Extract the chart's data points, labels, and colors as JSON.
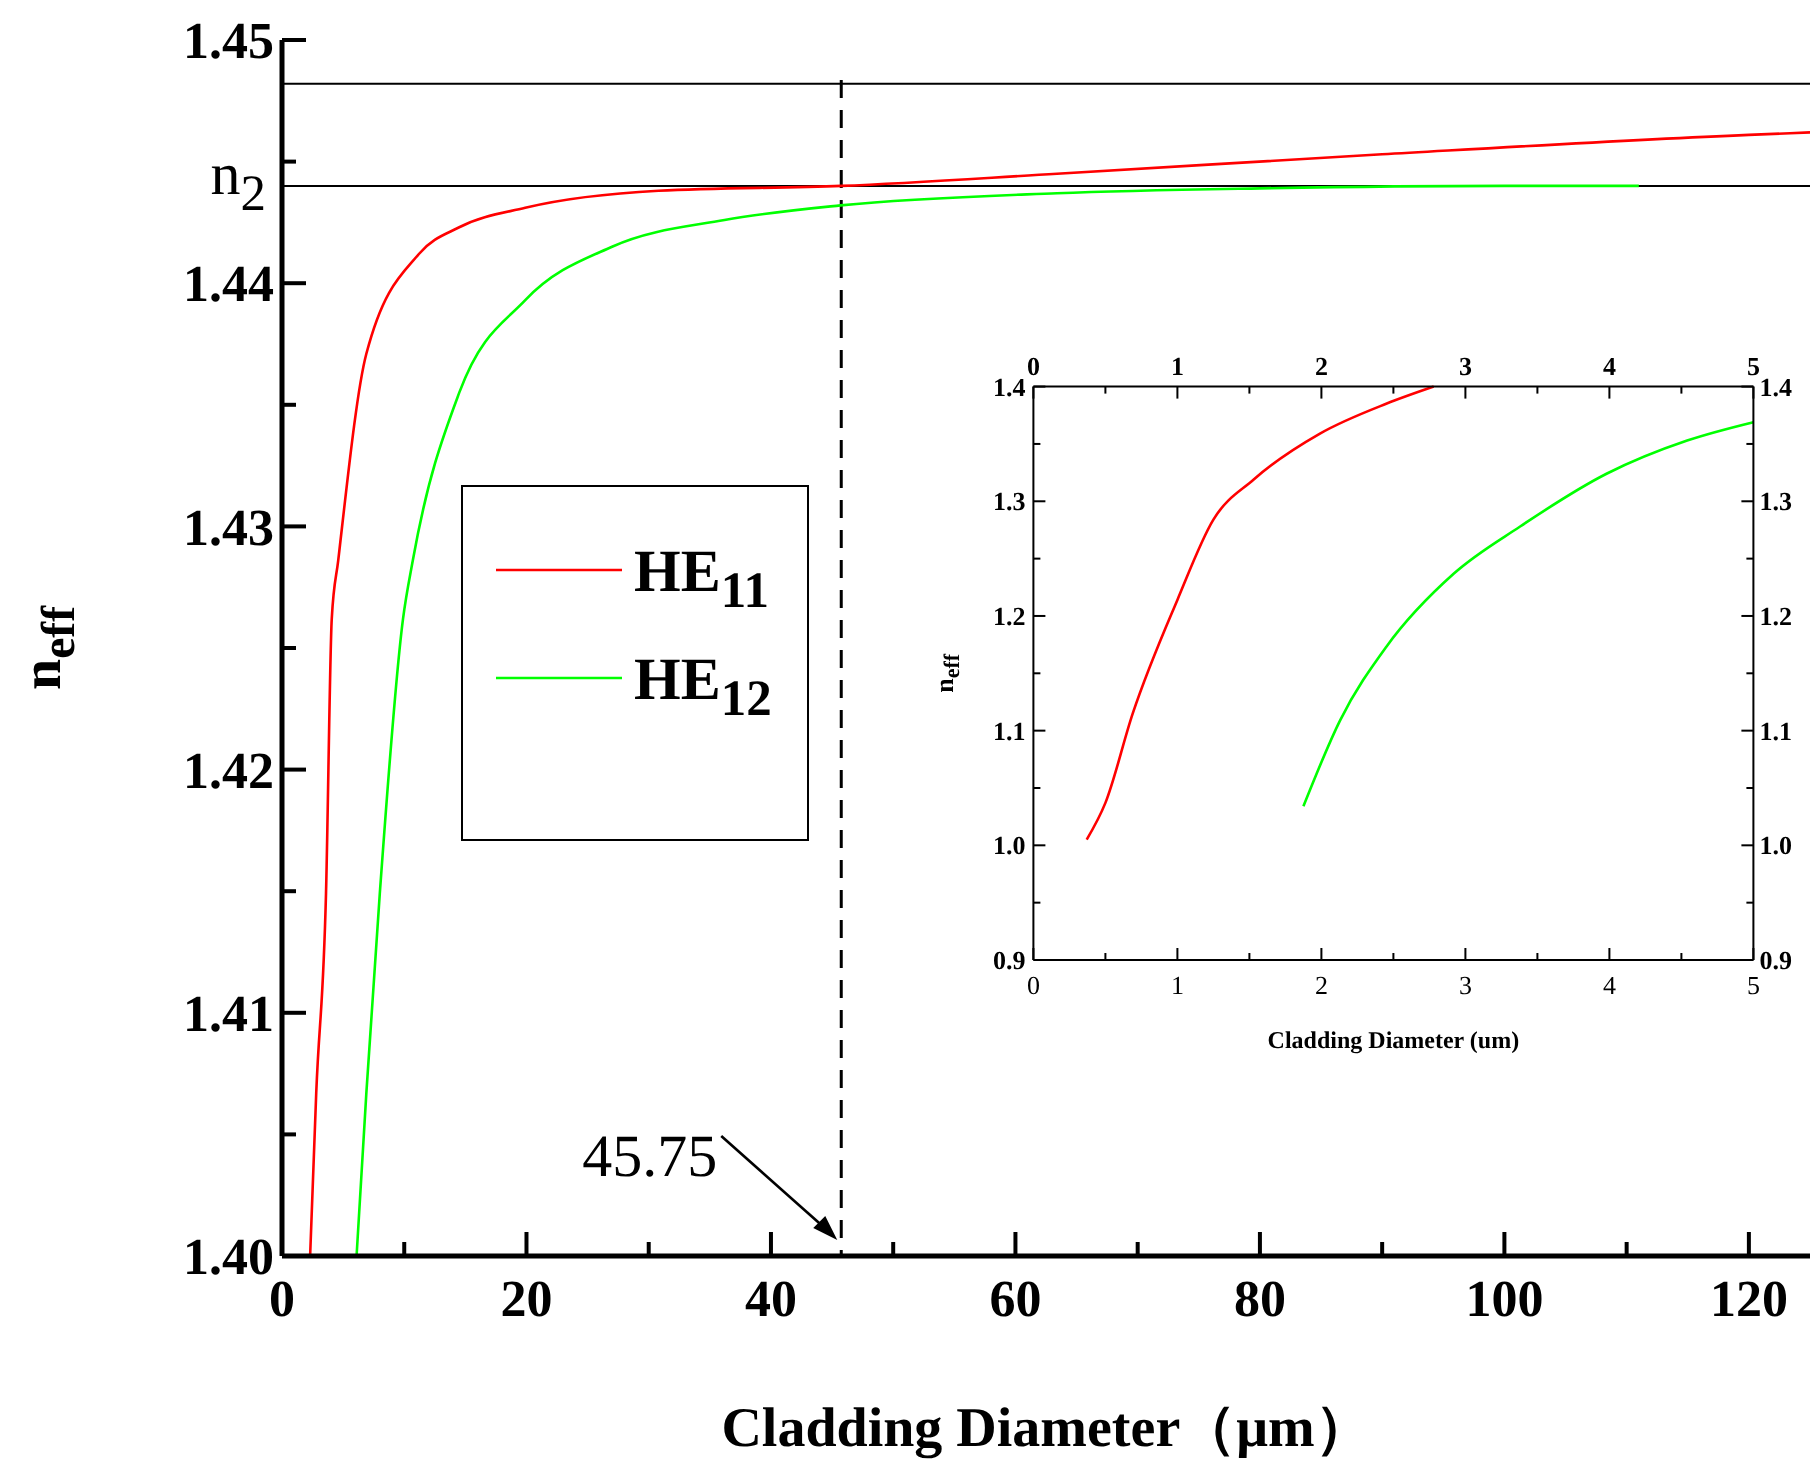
{
  "chart_data": [
    {
      "type": "line",
      "xlabel": "Cladding Diameter（μm）",
      "ylabel": "n$_{eff}$",
      "xlim": [
        0,
        125
      ],
      "ylim": [
        1.4,
        1.45
      ],
      "xticks": [
        0,
        {
          "value": 10,
          "label": null
        },
        20,
        {
          "value": 30,
          "label": null
        },
        40,
        {
          "value": 50,
          "label": null
        },
        60,
        {
          "value": 70,
          "label": null
        },
        80,
        {
          "value": 90,
          "label": null
        },
        100,
        {
          "value": 110,
          "label": null
        },
        120
      ],
      "yticks": [
        {
          "value": 1.4,
          "label": "1.40"
        },
        {
          "value": 1.405,
          "label": null
        },
        1.41,
        {
          "value": 1.415,
          "label": null
        },
        1.42,
        {
          "value": 1.425,
          "label": null
        },
        1.43,
        {
          "value": 1.435,
          "label": null
        },
        1.44,
        {
          "value": 1.445,
          "label": null
        },
        1.45
      ],
      "legend": "left",
      "grid": false,
      "series": [
        {
          "name": "HE$_{11}$",
          "color": "#ff0000",
          "x": [
            2.3,
            2.8,
            3.6,
            4.07,
            4.6,
            6.9,
            11.2,
            14.5,
            19.9,
            30.8,
            45.75,
            63.4,
            90,
            120,
            125
          ],
          "values": [
            1.4,
            1.4067,
            1.4149,
            1.4262,
            1.4286,
            1.4371,
            1.4412,
            1.4423,
            1.4431,
            1.4438,
            1.444,
            1.4445,
            1.4453,
            1.4461,
            1.4462
          ]
        },
        {
          "name": "HE$_{12}$",
          "color": "#00ff00",
          "x": [
            6.1,
            6.9,
            8.0,
            9.9,
            10.7,
            14.5,
            19.9,
            27,
            36.2,
            45.7,
            63.4,
            80,
            100,
            111
          ],
          "values": [
            1.4,
            1.4067,
            1.4149,
            1.4262,
            1.4286,
            1.4355,
            1.4393,
            1.4415,
            1.4426,
            1.4432,
            1.4437,
            1.4439,
            1.444,
            1.444
          ]
        }
      ],
      "ref_lines": [
        {
          "axis": "y",
          "value": 1.4482,
          "color": "#000000",
          "line_style": "solid"
        },
        {
          "axis": "y",
          "value": 1.444,
          "label": "n$_{2}$",
          "color": "#000000",
          "line_style": "solid"
        },
        {
          "axis": "x",
          "value": 45.75,
          "label": "45.75",
          "color": "#000000",
          "line_style": "dashed"
        }
      ]
    },
    {
      "type": "line",
      "xlabel": "Cladding Diameter (um)",
      "ylabel": "n$_{eff}$",
      "xlim": [
        0,
        5
      ],
      "ylim": [
        0.9,
        1.4
      ],
      "x2lim": [
        0,
        5
      ],
      "y2lim": [
        0.9,
        1.4
      ],
      "xticks": [
        0,
        {
          "value": 0.5,
          "label": null
        },
        1,
        {
          "value": 1.5,
          "label": null
        },
        2,
        {
          "value": 2.5,
          "label": null
        },
        3,
        {
          "value": 3.5,
          "label": null
        },
        4,
        {
          "value": 4.5,
          "label": null
        },
        5
      ],
      "x2ticks": [
        0,
        {
          "value": 0.5,
          "label": null
        },
        1,
        {
          "value": 1.5,
          "label": null
        },
        2,
        {
          "value": 2.5,
          "label": null
        },
        3,
        {
          "value": 3.5,
          "label": null
        },
        4,
        {
          "value": 4.5,
          "label": null
        },
        5
      ],
      "yticks": [
        0.9,
        {
          "value": 0.95,
          "label": null
        },
        {
          "value": 1.0,
          "label": "1.0"
        },
        {
          "value": 1.05,
          "label": null
        },
        1.1,
        {
          "value": 1.15,
          "label": null
        },
        1.2,
        {
          "value": 1.25,
          "label": null
        },
        1.3,
        {
          "value": 1.35,
          "label": null
        },
        1.4
      ],
      "y2ticks": [
        0.9,
        {
          "value": 0.95,
          "label": null
        },
        {
          "value": 1.0,
          "label": "1.0"
        },
        {
          "value": 1.05,
          "label": null
        },
        1.1,
        {
          "value": 1.15,
          "label": null
        },
        1.2,
        {
          "value": 1.25,
          "label": null
        },
        1.3,
        {
          "value": 1.35,
          "label": null
        },
        1.4
      ],
      "legend": false,
      "grid": false,
      "series": [
        {
          "color": "#ff0000",
          "x": [
            0.37,
            0.5,
            0.69,
            1.0,
            1.25,
            1.53,
            1.99,
            2.45,
            2.78
          ],
          "values": [
            1.005,
            1.037,
            1.115,
            1.214,
            1.284,
            1.319,
            1.359,
            1.385,
            1.4
          ]
        },
        {
          "color": "#00ff00",
          "x": [
            1.875,
            2.13,
            2.45,
            2.92,
            3.38,
            3.98,
            4.54,
            5.0
          ],
          "values": [
            1.034,
            1.109,
            1.173,
            1.237,
            1.278,
            1.324,
            1.353,
            1.369
          ]
        }
      ]
    }
  ]
}
